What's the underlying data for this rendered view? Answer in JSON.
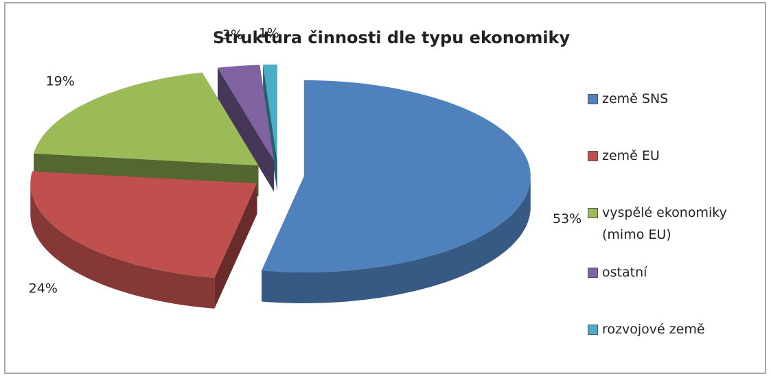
{
  "chart_data": {
    "type": "pie",
    "title": "Struktura činnosti dle typu ekonomiky",
    "categories": [
      "země SNS",
      "země EU",
      "vyspělé ekonomiky (mimo EU)",
      "ostatní",
      "rozvojové země"
    ],
    "values": [
      53,
      24,
      19,
      3,
      1
    ],
    "value_labels": [
      "53%",
      "24%",
      "19%",
      "3%",
      "1%"
    ],
    "colors": [
      "#4f81bd",
      "#c0504d",
      "#9bbb59",
      "#8064a2",
      "#4bacc6"
    ],
    "legend": "right"
  }
}
